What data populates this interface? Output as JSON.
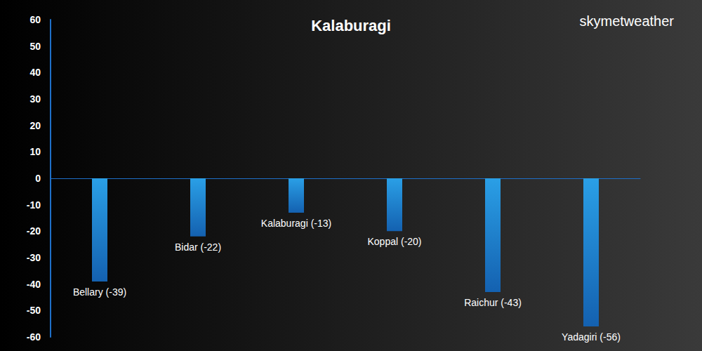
{
  "chart_data": {
    "type": "bar",
    "title": "Kalaburagi",
    "annotations": [
      "skymetweather"
    ],
    "categories": [
      "Bellary",
      "Bidar",
      "Kalaburagi",
      "Koppal",
      "Raichur",
      "Yadagiri"
    ],
    "values": [
      -39,
      -22,
      -13,
      -20,
      -43,
      -56
    ],
    "value_labels": [
      "Bellary (-39)",
      "Bidar (-22)",
      "Kalaburagi (-13)",
      "Koppal (-20)",
      "Raichur (-43)",
      "Yadagiri (-56)"
    ],
    "data_labels": true,
    "color": "#2a9fe6",
    "ylim": [
      -60,
      60
    ],
    "yticks": [
      -60,
      -50,
      -40,
      -30,
      -20,
      -10,
      0,
      10,
      20,
      30,
      40,
      50,
      60
    ],
    "grid": false,
    "tick_labels": "y"
  }
}
